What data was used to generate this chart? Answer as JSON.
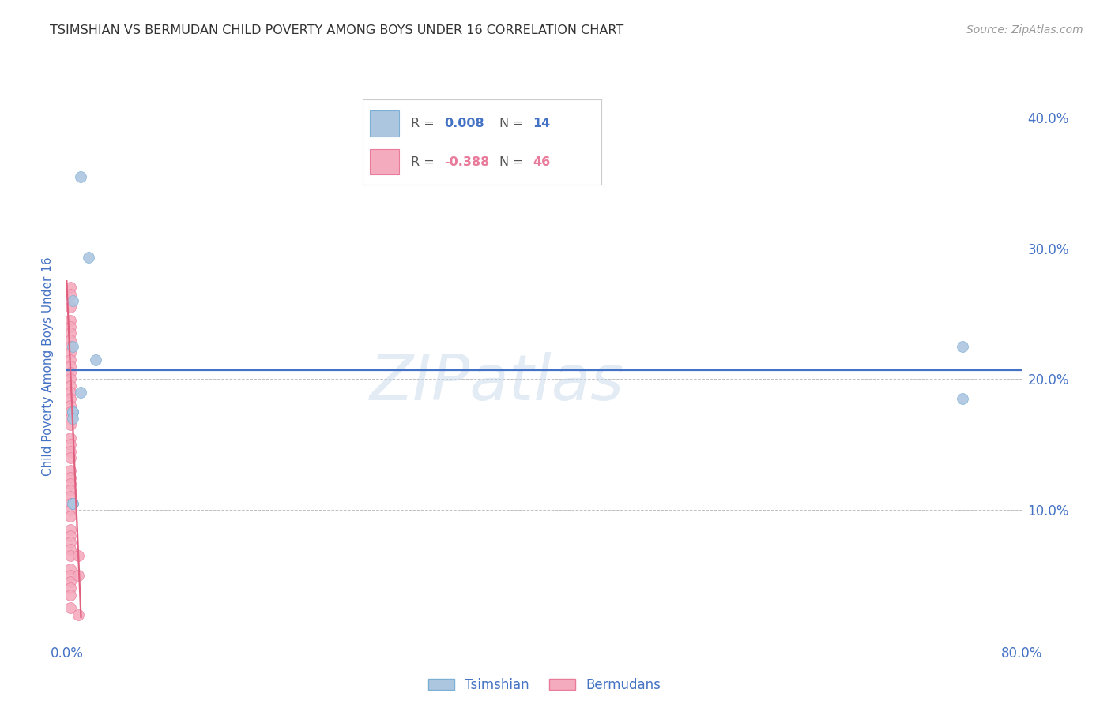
{
  "title": "TSIMSHIAN VS BERMUDAN CHILD POVERTY AMONG BOYS UNDER 16 CORRELATION CHART",
  "source": "Source: ZipAtlas.com",
  "ylabel": "Child Poverty Among Boys Under 16",
  "watermark": "ZIPatlas",
  "xlim": [
    0,
    0.8
  ],
  "ylim": [
    0,
    0.42
  ],
  "xticks": [
    0.0,
    0.1,
    0.2,
    0.3,
    0.4,
    0.5,
    0.6,
    0.7,
    0.8
  ],
  "xticklabels": [
    "0.0%",
    "",
    "",
    "",
    "",
    "",
    "",
    "",
    "80.0%"
  ],
  "yticks": [
    0.0,
    0.1,
    0.2,
    0.3,
    0.4
  ],
  "yticklabels_right": [
    "",
    "10.0%",
    "20.0%",
    "30.0%",
    "40.0%"
  ],
  "tsimshian_x": [
    0.012,
    0.018,
    0.024,
    0.005,
    0.005,
    0.012,
    0.005,
    0.005,
    0.75,
    0.75,
    0.005,
    0.005,
    0.005,
    0.005
  ],
  "tsimshian_y": [
    0.355,
    0.293,
    0.215,
    0.26,
    0.225,
    0.19,
    0.175,
    0.175,
    0.225,
    0.185,
    0.175,
    0.17,
    0.105,
    0.105
  ],
  "bermuda_x": [
    0.003,
    0.003,
    0.003,
    0.003,
    0.003,
    0.003,
    0.003,
    0.003,
    0.003,
    0.003,
    0.003,
    0.003,
    0.003,
    0.003,
    0.003,
    0.003,
    0.003,
    0.003,
    0.003,
    0.003,
    0.003,
    0.003,
    0.003,
    0.003,
    0.003,
    0.003,
    0.003,
    0.003,
    0.003,
    0.003,
    0.003,
    0.003,
    0.003,
    0.003,
    0.003,
    0.003,
    0.003,
    0.003,
    0.003,
    0.003,
    0.003,
    0.003,
    0.003,
    0.01,
    0.01,
    0.01
  ],
  "bermuda_y": [
    0.27,
    0.265,
    0.255,
    0.245,
    0.24,
    0.235,
    0.23,
    0.225,
    0.22,
    0.215,
    0.21,
    0.205,
    0.2,
    0.195,
    0.19,
    0.185,
    0.18,
    0.175,
    0.17,
    0.165,
    0.155,
    0.15,
    0.145,
    0.14,
    0.13,
    0.125,
    0.12,
    0.115,
    0.11,
    0.105,
    0.1,
    0.095,
    0.085,
    0.08,
    0.075,
    0.07,
    0.065,
    0.055,
    0.05,
    0.045,
    0.04,
    0.035,
    0.025,
    0.065,
    0.05,
    0.02
  ],
  "tsimshian_line_y": 0.207,
  "bermuda_line": {
    "x0": 0.0,
    "y0": 0.275,
    "x1": 0.012,
    "y1": 0.018
  },
  "dot_size": 100,
  "tsimshian_color": "#adc6e0",
  "tsimshian_edge_color": "#7bafd4",
  "bermuda_color": "#f5abbe",
  "bermuda_edge_color": "#e87a9a",
  "tsimshian_line_color": "#4472c4",
  "bermuda_line_color": "#e06080",
  "background_color": "#ffffff",
  "grid_color": "#b0b0b0",
  "title_color": "#333333",
  "axis_label_color": "#4472c4",
  "tick_color": "#4472c4",
  "legend_blue_r": "0.008",
  "legend_blue_n": "14",
  "legend_pink_r": "-0.388",
  "legend_pink_n": "46"
}
